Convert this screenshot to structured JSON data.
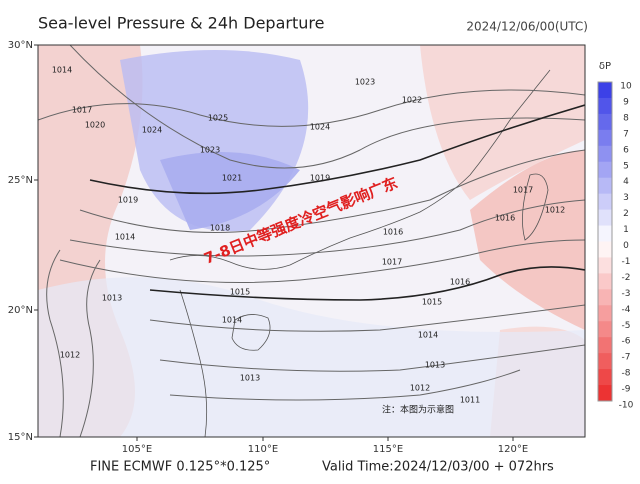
{
  "header": {
    "title": "Sea-level Pressure & 24h Departure",
    "time": "2024/12/06/00(UTC)"
  },
  "axes": {
    "lat": [
      "30°N",
      "25°N",
      "20°N",
      "15°N"
    ],
    "lon": [
      "105°E",
      "110°E",
      "115°E",
      "120°E"
    ]
  },
  "colorbar": {
    "label": "δP",
    "ticks": [
      10,
      9,
      8,
      7,
      6,
      5,
      4,
      3,
      2,
      1,
      0,
      -1,
      -2,
      -3,
      -4,
      -5,
      -6,
      -7,
      -8,
      -9,
      -10
    ]
  },
  "isobar_labels": [
    "1014",
    "1017",
    "1020",
    "1024",
    "1025",
    "1023",
    "1021",
    "1024",
    "1023",
    "1022",
    "1019",
    "1018",
    "1019",
    "1016",
    "1017",
    "1015",
    "1014",
    "1013",
    "1012",
    "1011",
    "1017",
    "1016",
    "1012",
    "1014",
    "1013",
    "1012",
    "1013",
    "1015",
    "1016",
    "1014"
  ],
  "annotation": "7-8日中等强度冷空气影响广东",
  "note": "注：本图为示意图",
  "footer": {
    "model": "FINE ECMWF 0.125°*0.125°",
    "valid": "Valid Time:2024/12/03/00 + 072hrs"
  }
}
